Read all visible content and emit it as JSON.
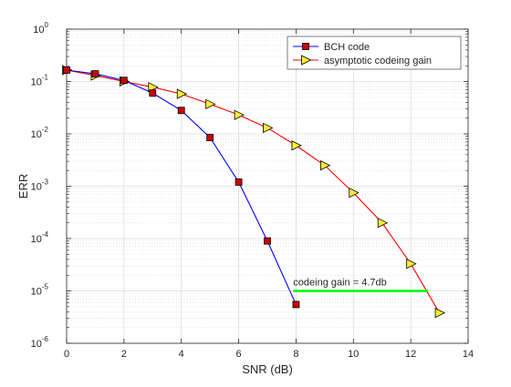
{
  "chart_data": {
    "type": "line",
    "xlabel": "SNR (dB)",
    "ylabel": "ERR",
    "xlim": [
      0,
      14
    ],
    "ylim": [
      1e-06,
      1
    ],
    "y_scale": "log",
    "x_ticks": [
      "0",
      "2",
      "4",
      "6",
      "8",
      "10",
      "12",
      "14"
    ],
    "y_ticks": [
      {
        "base": "10",
        "exp": "-6"
      },
      {
        "base": "10",
        "exp": "-5"
      },
      {
        "base": "10",
        "exp": "-4"
      },
      {
        "base": "10",
        "exp": "-3"
      },
      {
        "base": "10",
        "exp": "-2"
      },
      {
        "base": "10",
        "exp": "-1"
      },
      {
        "base": "10",
        "exp": "0"
      }
    ],
    "grid": true,
    "legend_position": "top-right",
    "series": [
      {
        "name": "BCH code",
        "color": "#0000ff",
        "marker": "square",
        "marker_color": "#cc0000",
        "x": [
          0,
          1,
          2,
          3,
          4,
          5,
          6,
          7,
          8
        ],
        "y": [
          0.165,
          0.14,
          0.105,
          0.06,
          0.028,
          0.0085,
          0.0012,
          9e-05,
          5.5e-06
        ]
      },
      {
        "name": "asymptotic codeing gain",
        "color": "#ff0000",
        "marker": "triangle-right",
        "marker_color": "#ffee33",
        "x": [
          0,
          1,
          2,
          3,
          4,
          5,
          6,
          7,
          8,
          9,
          10,
          11,
          12,
          13
        ],
        "y": [
          0.165,
          0.13,
          0.1,
          0.078,
          0.058,
          0.037,
          0.023,
          0.013,
          0.006,
          0.0025,
          0.00075,
          0.0002,
          3.3e-05,
          3.8e-06
        ]
      }
    ],
    "annotation": {
      "text": "codeing gain = 4.7db",
      "x": 7.9,
      "y": 1.5e-05
    },
    "gain_line": {
      "color": "#00ff00",
      "x_start": 7.9,
      "x_end": 12.6,
      "y": 1e-05
    }
  }
}
